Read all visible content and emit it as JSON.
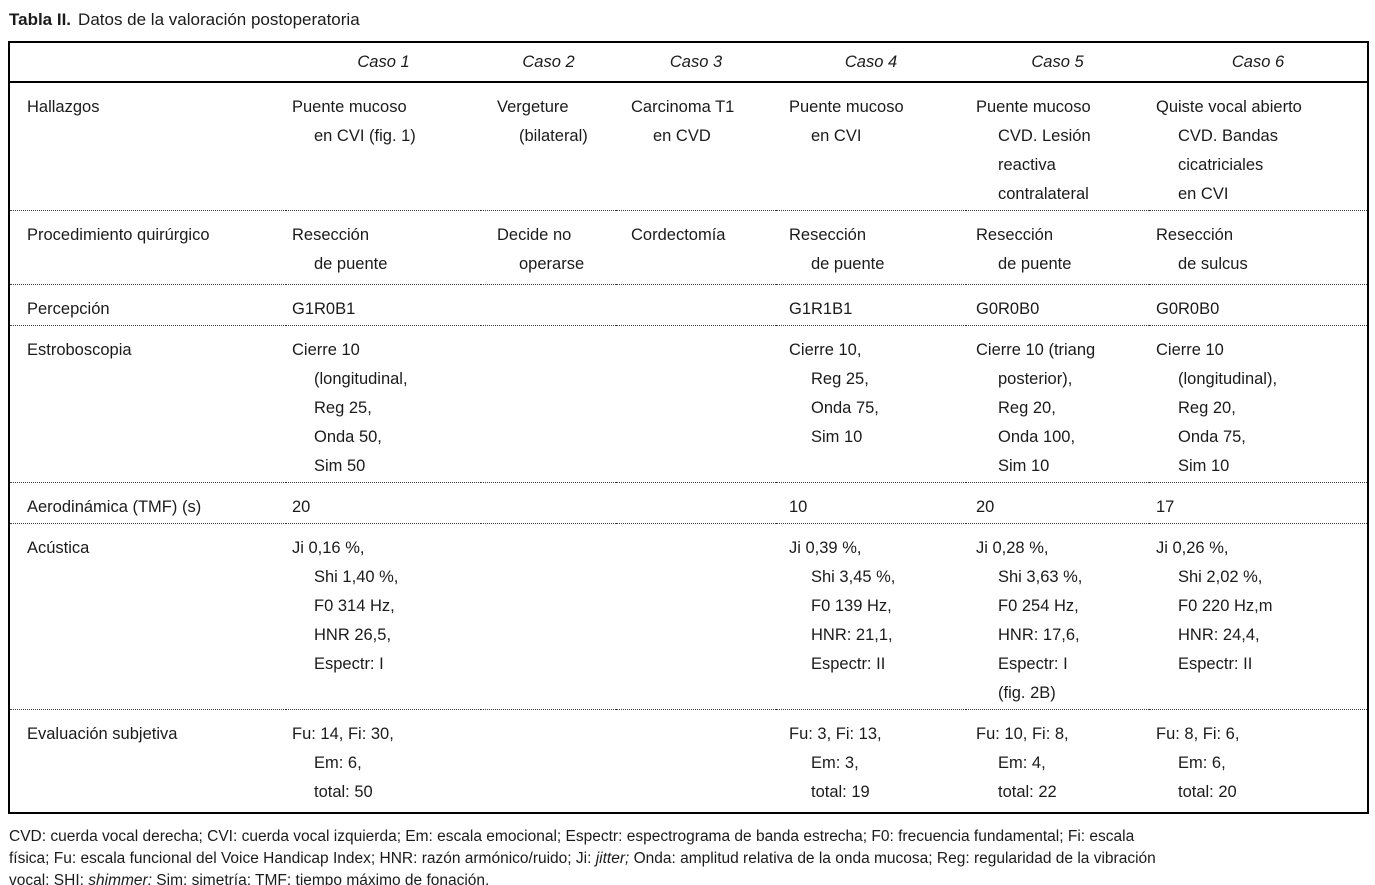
{
  "title": {
    "label": "Tabla II.",
    "text": "Datos de la valoración postoperatoria"
  },
  "table": {
    "header": [
      "",
      "Caso 1",
      "Caso 2",
      "Caso 3",
      "Caso 4",
      "Caso 5",
      "Caso 6"
    ],
    "rows": [
      {
        "label": "Hallazgos",
        "cells": [
          [
            "Puente mucoso",
            "en CVI (fig. 1)"
          ],
          [
            "Vergeture",
            "(bilateral)"
          ],
          [
            "Carcinoma T1",
            "en CVD"
          ],
          [
            "Puente mucoso",
            "en CVI"
          ],
          [
            "Puente mucoso",
            "CVD. Lesión",
            "reactiva",
            "contralateral"
          ],
          [
            "Quiste vocal abierto",
            "CVD. Bandas",
            "cicatriciales",
            "en CVI"
          ]
        ]
      },
      {
        "label": "Procedimiento quirúrgico",
        "cells": [
          [
            "Resección",
            "de puente"
          ],
          [
            "Decide no",
            "operarse"
          ],
          [
            "Cordectomía"
          ],
          [
            "Resección",
            "de puente"
          ],
          [
            "Resección",
            "de puente"
          ],
          [
            "Resección",
            "de sulcus"
          ]
        ]
      },
      {
        "label": "Percepción",
        "cells": [
          [
            "G1R0B1"
          ],
          [],
          [],
          [
            "G1R1B1"
          ],
          [
            "G0R0B0"
          ],
          [
            "G0R0B0"
          ]
        ]
      },
      {
        "label": "Estroboscopia",
        "cells": [
          [
            "Cierre 10",
            "(longitudinal,",
            "Reg 25,",
            "Onda 50,",
            "Sim 50"
          ],
          [],
          [],
          [
            "Cierre 10,",
            "Reg 25,",
            "Onda 75,",
            "Sim 10"
          ],
          [
            "Cierre 10 (triang",
            "posterior),",
            "Reg 20,",
            "Onda 100,",
            "Sim 10"
          ],
          [
            "Cierre 10",
            "(longitudinal),",
            "Reg 20,",
            "Onda 75,",
            "Sim 10"
          ]
        ]
      },
      {
        "label": "Aerodinámica (TMF) (s)",
        "cells": [
          [
            "20"
          ],
          [],
          [],
          [
            "10"
          ],
          [
            "20"
          ],
          [
            "17"
          ]
        ]
      },
      {
        "label": "Acústica",
        "cells": [
          [
            "Ji 0,16 %,",
            "Shi 1,40 %,",
            "F0 314 Hz,",
            "HNR 26,5,",
            "Espectr: I"
          ],
          [],
          [],
          [
            "Ji 0,39 %,",
            "Shi 3,45 %,",
            "F0 139 Hz,",
            "HNR: 21,1,",
            "Espectr: II"
          ],
          [
            "Ji 0,28 %,",
            "Shi 3,63 %,",
            "F0 254 Hz,",
            "HNR: 17,6,",
            "Espectr: I",
            "(fig. 2B)"
          ],
          [
            "Ji 0,26 %,",
            "Shi 2,02 %,",
            "F0 220 Hz,m",
            "HNR: 24,4,",
            "Espectr: II"
          ]
        ]
      },
      {
        "label": "Evaluación subjetiva",
        "cells": [
          [
            "Fu: 14, Fi: 30,",
            "Em: 6,",
            "total: 50"
          ],
          [],
          [],
          [
            "Fu: 3, Fi: 13,",
            "Em: 3,",
            "total: 19"
          ],
          [
            "Fu: 10, Fi: 8,",
            "Em: 4,",
            "total: 22"
          ],
          [
            "Fu: 8, Fi: 6,",
            "Em: 6,",
            "total: 20"
          ]
        ]
      }
    ]
  },
  "footnote": {
    "lines": [
      [
        {
          "t": "CVD: cuerda vocal derecha; CVI: cuerda vocal izquierda; Em: escala emocional; Espectr: espectrograma de banda estrecha; F0: frecuencia fundamental; Fi: escala"
        }
      ],
      [
        {
          "t": "física; Fu: escala funcional del Voice Handicap Index; HNR: razón armónico/ruido; Ji: "
        },
        {
          "t": "jitter;",
          "i": true
        },
        {
          "t": " Onda: amplitud relativa de la onda mucosa; Reg: regularidad de la vibración"
        }
      ],
      [
        {
          "t": "vocal; SHI: "
        },
        {
          "t": "shimmer;",
          "i": true
        },
        {
          "t": " Sim: simetría; TMF: tiempo máximo de fonación."
        }
      ]
    ]
  }
}
